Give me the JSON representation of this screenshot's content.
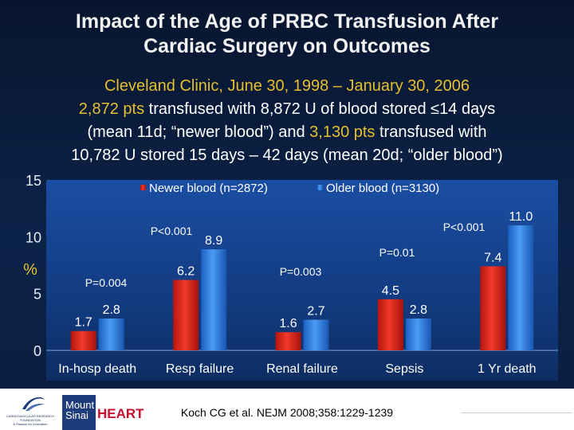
{
  "title_line1": "Impact of the Age of PRBC Transfusion  After",
  "title_line2": "Cardiac Surgery on Outcomes",
  "subtitle": {
    "line1": "Cleveland Clinic, June 30, 1998 – January 30, 2006",
    "line2_a": "2,872 pts",
    "line2_b": " transfused with 8,872 U of blood stored ≤14 days",
    "line3_a": "(mean 11d; “newer blood”) and ",
    "line3_b": "3,130 pts",
    "line3_c": " transfused with",
    "line4": "10,782 U stored 15 days – 42 days (mean 20d; “older blood”)"
  },
  "chart_data": {
    "type": "bar",
    "categories": [
      "In-hosp death",
      "Resp failure",
      "Renal failure",
      "Sepsis",
      "1 Yr death"
    ],
    "series": [
      {
        "name": "Newer blood (n=2872)",
        "values": [
          1.7,
          6.2,
          1.6,
          4.5,
          7.4
        ],
        "color": "#e0241b"
      },
      {
        "name": "Older blood (n=3130)",
        "values": [
          2.8,
          8.9,
          2.7,
          2.8,
          11.0
        ],
        "color": "#2f7fe0"
      }
    ],
    "value_labels": {
      "newer": [
        "1.7",
        "6.2",
        "1.6",
        "4.5",
        "7.4"
      ],
      "older": [
        "2.8",
        "8.9",
        "2.7",
        "2.8",
        "11.0"
      ]
    },
    "ylim": [
      0,
      15
    ],
    "yticks": [
      0,
      5,
      10,
      15
    ],
    "ylabel": "%",
    "legend_position": "top",
    "p_values": [
      "P=0.004",
      "P<0.001",
      "P=0.003",
      "P=0.01",
      "P<0.001"
    ]
  },
  "footer": {
    "logo_crf_text": "CARDIOVASCULAR RESEARCH FOUNDATION",
    "logo_crf_tagline": "A Passion for Innovation",
    "logo_ms_line1": "Mount",
    "logo_ms_line2": "Sinai",
    "logo_heart": "HEART",
    "citation": "Koch CG et al. NEJM 2008;358:1229-1239"
  },
  "colors": {
    "highlight": "#e6bf2e",
    "newer": "#e0241b",
    "older": "#2f7fe0"
  }
}
